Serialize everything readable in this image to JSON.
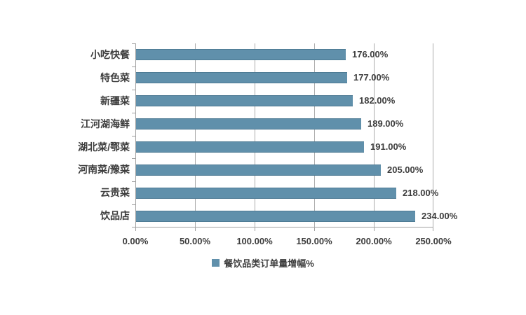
{
  "chart_data": {
    "type": "bar",
    "orientation": "horizontal",
    "title": "",
    "xlabel": "",
    "ylabel": "",
    "categories": [
      "小吃快餐",
      "特色菜",
      "新疆菜",
      "江河湖海鲜",
      "湖北菜/鄂菜",
      "河南菜/豫菜",
      "云贵菜",
      "饮品店"
    ],
    "values": [
      176,
      177,
      182,
      189,
      191,
      205,
      218,
      234
    ],
    "value_labels": [
      "176.00%",
      "177.00%",
      "182.00%",
      "189.00%",
      "191.00%",
      "205.00%",
      "218.00%",
      "234.00%"
    ],
    "xlim": [
      0,
      250
    ],
    "x_ticks": [
      0,
      50,
      100,
      150,
      200,
      250
    ],
    "x_tick_labels": [
      "0.00%",
      "50.00%",
      "100.00%",
      "150.00%",
      "200.00%",
      "250.00%"
    ],
    "grid": "vertical",
    "legend": [
      "餐饮品类订单量增幅%"
    ],
    "legend_position": "bottom"
  },
  "colors": {
    "bar_fill": "#6090AB",
    "bar_border": "#4E7B94",
    "axis": "#A0A0A0",
    "gridline": "#ACACAC",
    "text": "#3D3D3D",
    "background": "#FFFFFF"
  }
}
